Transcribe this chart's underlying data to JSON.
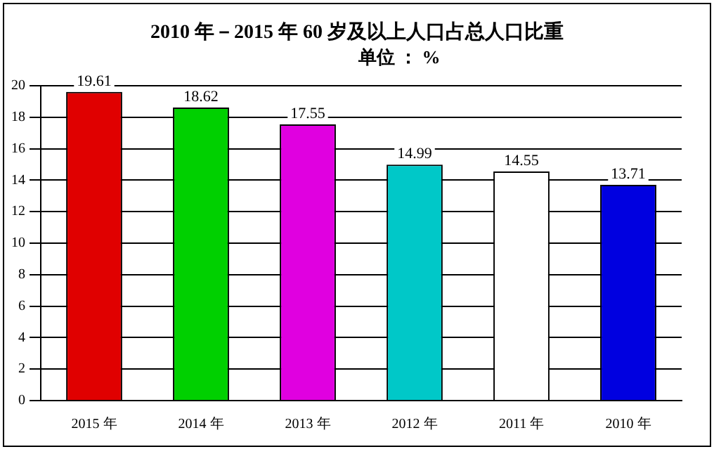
{
  "chart_data": {
    "type": "bar",
    "title": "2010  年－2015  年 60 岁及以上人口占总人口比重",
    "subtitle": "单位 ：  %",
    "categories": [
      "2015 年",
      "2014 年",
      "2013 年",
      "2012 年",
      "2011 年",
      "2010 年"
    ],
    "values": [
      19.61,
      18.62,
      17.55,
      14.99,
      14.55,
      13.71
    ],
    "colors": [
      "#e00000",
      "#00d000",
      "#e000e0",
      "#00c8c8",
      "#ffffff",
      "#0000e0"
    ],
    "ylim": [
      0,
      20
    ],
    "yticks": [
      0,
      2,
      4,
      6,
      8,
      10,
      12,
      14,
      16,
      18,
      20
    ],
    "grid": "y",
    "data_labels": true
  }
}
